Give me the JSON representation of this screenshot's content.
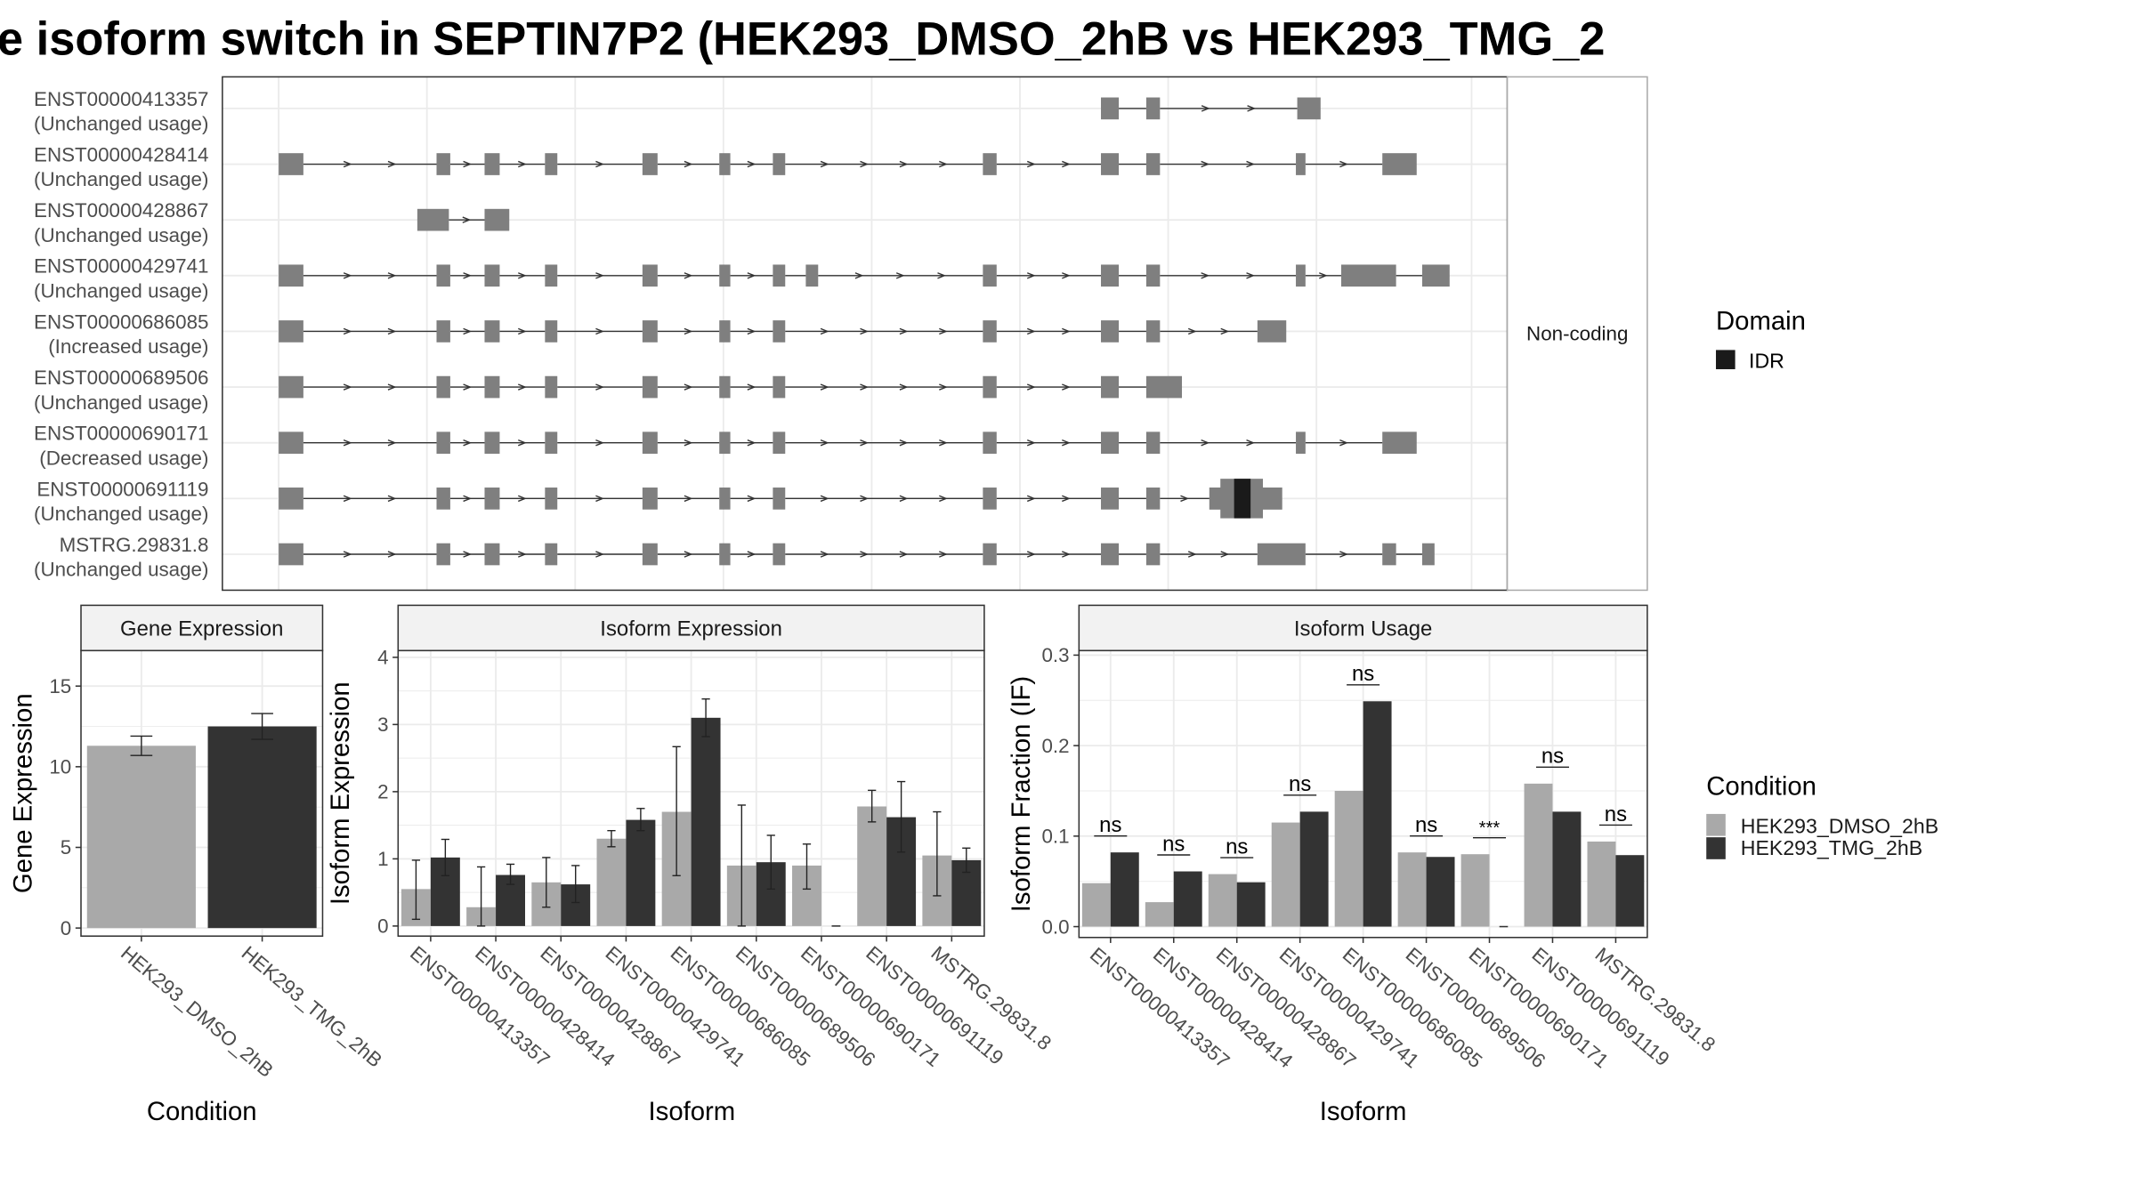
{
  "title": "e isoform switch in SEPTIN7P2 (HEK293_DMSO_2hB vs HEK293_TMG_2",
  "colors": {
    "exon": "#7f7f7f",
    "idr": "#1a1a1a",
    "dmso": "#a9a9a9",
    "tmg": "#333333",
    "grid": "#ebebeb",
    "strip": "#f2f2f2"
  },
  "structure_panel": {
    "strip_label": "Non-coding",
    "domain_legend_title": "Domain",
    "domain_legend_items": [
      {
        "label": "IDR",
        "color": "#1a1a1a"
      }
    ],
    "isoforms": [
      {
        "id": "ENST00000413357",
        "status": "(Unchanged usage)"
      },
      {
        "id": "ENST00000428414",
        "status": "(Unchanged usage)"
      },
      {
        "id": "ENST00000428867",
        "status": "(Unchanged usage)"
      },
      {
        "id": "ENST00000429741",
        "status": "(Unchanged usage)"
      },
      {
        "id": "ENST00000686085",
        "status": "(Increased usage)"
      },
      {
        "id": "ENST00000689506",
        "status": "(Unchanged usage)"
      },
      {
        "id": "ENST00000690171",
        "status": "(Decreased usage)"
      },
      {
        "id": "ENST00000691119",
        "status": "(Unchanged usage)"
      },
      {
        "id": "MSTRG.29831.8",
        "status": "(Unchanged usage)"
      }
    ]
  },
  "condition_legend": {
    "title": "Condition",
    "items": [
      {
        "label": "HEK293_DMSO_2hB",
        "color": "#a9a9a9"
      },
      {
        "label": "HEK293_TMG_2hB",
        "color": "#333333"
      }
    ]
  },
  "chart_data": [
    {
      "type": "bar",
      "title": "Gene Expression",
      "xlabel": "Condition",
      "ylabel": "Gene Expression",
      "categories": [
        "HEK293_DMSO_2hB",
        "HEK293_TMG_2hB"
      ],
      "values": [
        11.3,
        12.5
      ],
      "error": [
        [
          10.7,
          11.9
        ],
        [
          11.7,
          13.3
        ]
      ],
      "ylim": [
        -0.5,
        17.2
      ],
      "yticks": [
        0,
        5,
        10,
        15
      ],
      "grid": true
    },
    {
      "type": "bar",
      "title": "Isoform Expression",
      "xlabel": "Isoform",
      "ylabel": "Isoform Expression",
      "categories": [
        "ENST00000413357",
        "ENST00000428414",
        "ENST00000428867",
        "ENST00000429741",
        "ENST00000686085",
        "ENST00000689506",
        "ENST00000690171",
        "ENST00000691119",
        "MSTRG.29831.8"
      ],
      "series": [
        {
          "name": "HEK293_DMSO_2hB",
          "values": [
            0.55,
            0.28,
            0.65,
            1.3,
            1.7,
            0.9,
            0.9,
            1.78,
            1.05
          ],
          "error": [
            [
              0.1,
              0.98
            ],
            [
              0,
              0.88
            ],
            [
              0.28,
              1.02
            ],
            [
              1.18,
              1.42
            ],
            [
              0.75,
              2.67
            ],
            [
              0,
              1.8
            ],
            [
              0.55,
              1.22
            ],
            [
              1.55,
              2.02
            ],
            [
              0.45,
              1.7
            ]
          ]
        },
        {
          "name": "HEK293_TMG_2hB",
          "values": [
            1.02,
            0.76,
            0.62,
            1.58,
            3.1,
            0.95,
            0.0,
            1.62,
            0.98
          ],
          "error": [
            [
              0.75,
              1.29
            ],
            [
              0.62,
              0.92
            ],
            [
              0.35,
              0.9
            ],
            [
              1.42,
              1.75
            ],
            [
              2.82,
              3.38
            ],
            [
              0.55,
              1.35
            ],
            [
              0,
              0
            ],
            [
              1.1,
              2.15
            ],
            [
              0.8,
              1.16
            ]
          ]
        }
      ],
      "ylim": [
        -0.15,
        4.1
      ],
      "yticks": [
        0,
        1,
        2,
        3,
        4
      ],
      "grid": true
    },
    {
      "type": "bar",
      "title": "Isoform Usage",
      "xlabel": "Isoform",
      "ylabel": "Isoform Fraction (IF)",
      "categories": [
        "ENST00000413357",
        "ENST00000428414",
        "ENST00000428867",
        "ENST00000429741",
        "ENST00000686085",
        "ENST00000689506",
        "ENST00000690171",
        "ENST00000691119",
        "MSTRG.29831.8"
      ],
      "series": [
        {
          "name": "HEK293_DMSO_2hB",
          "values": [
            0.048,
            0.027,
            0.058,
            0.115,
            0.15,
            0.082,
            0.08,
            0.158,
            0.094
          ]
        },
        {
          "name": "HEK293_TMG_2hB",
          "values": [
            0.082,
            0.061,
            0.049,
            0.127,
            0.249,
            0.077,
            0.0,
            0.127,
            0.079
          ]
        }
      ],
      "significance": [
        "ns",
        "ns",
        "ns",
        "ns",
        "ns",
        "ns",
        "***",
        "ns",
        "ns"
      ],
      "ylim": [
        -0.012,
        0.305
      ],
      "yticks": [
        0.0,
        0.1,
        0.2,
        0.3
      ],
      "ytick_labels": [
        "0.0",
        "0.1",
        "0.2",
        "0.3"
      ],
      "grid": true
    }
  ]
}
